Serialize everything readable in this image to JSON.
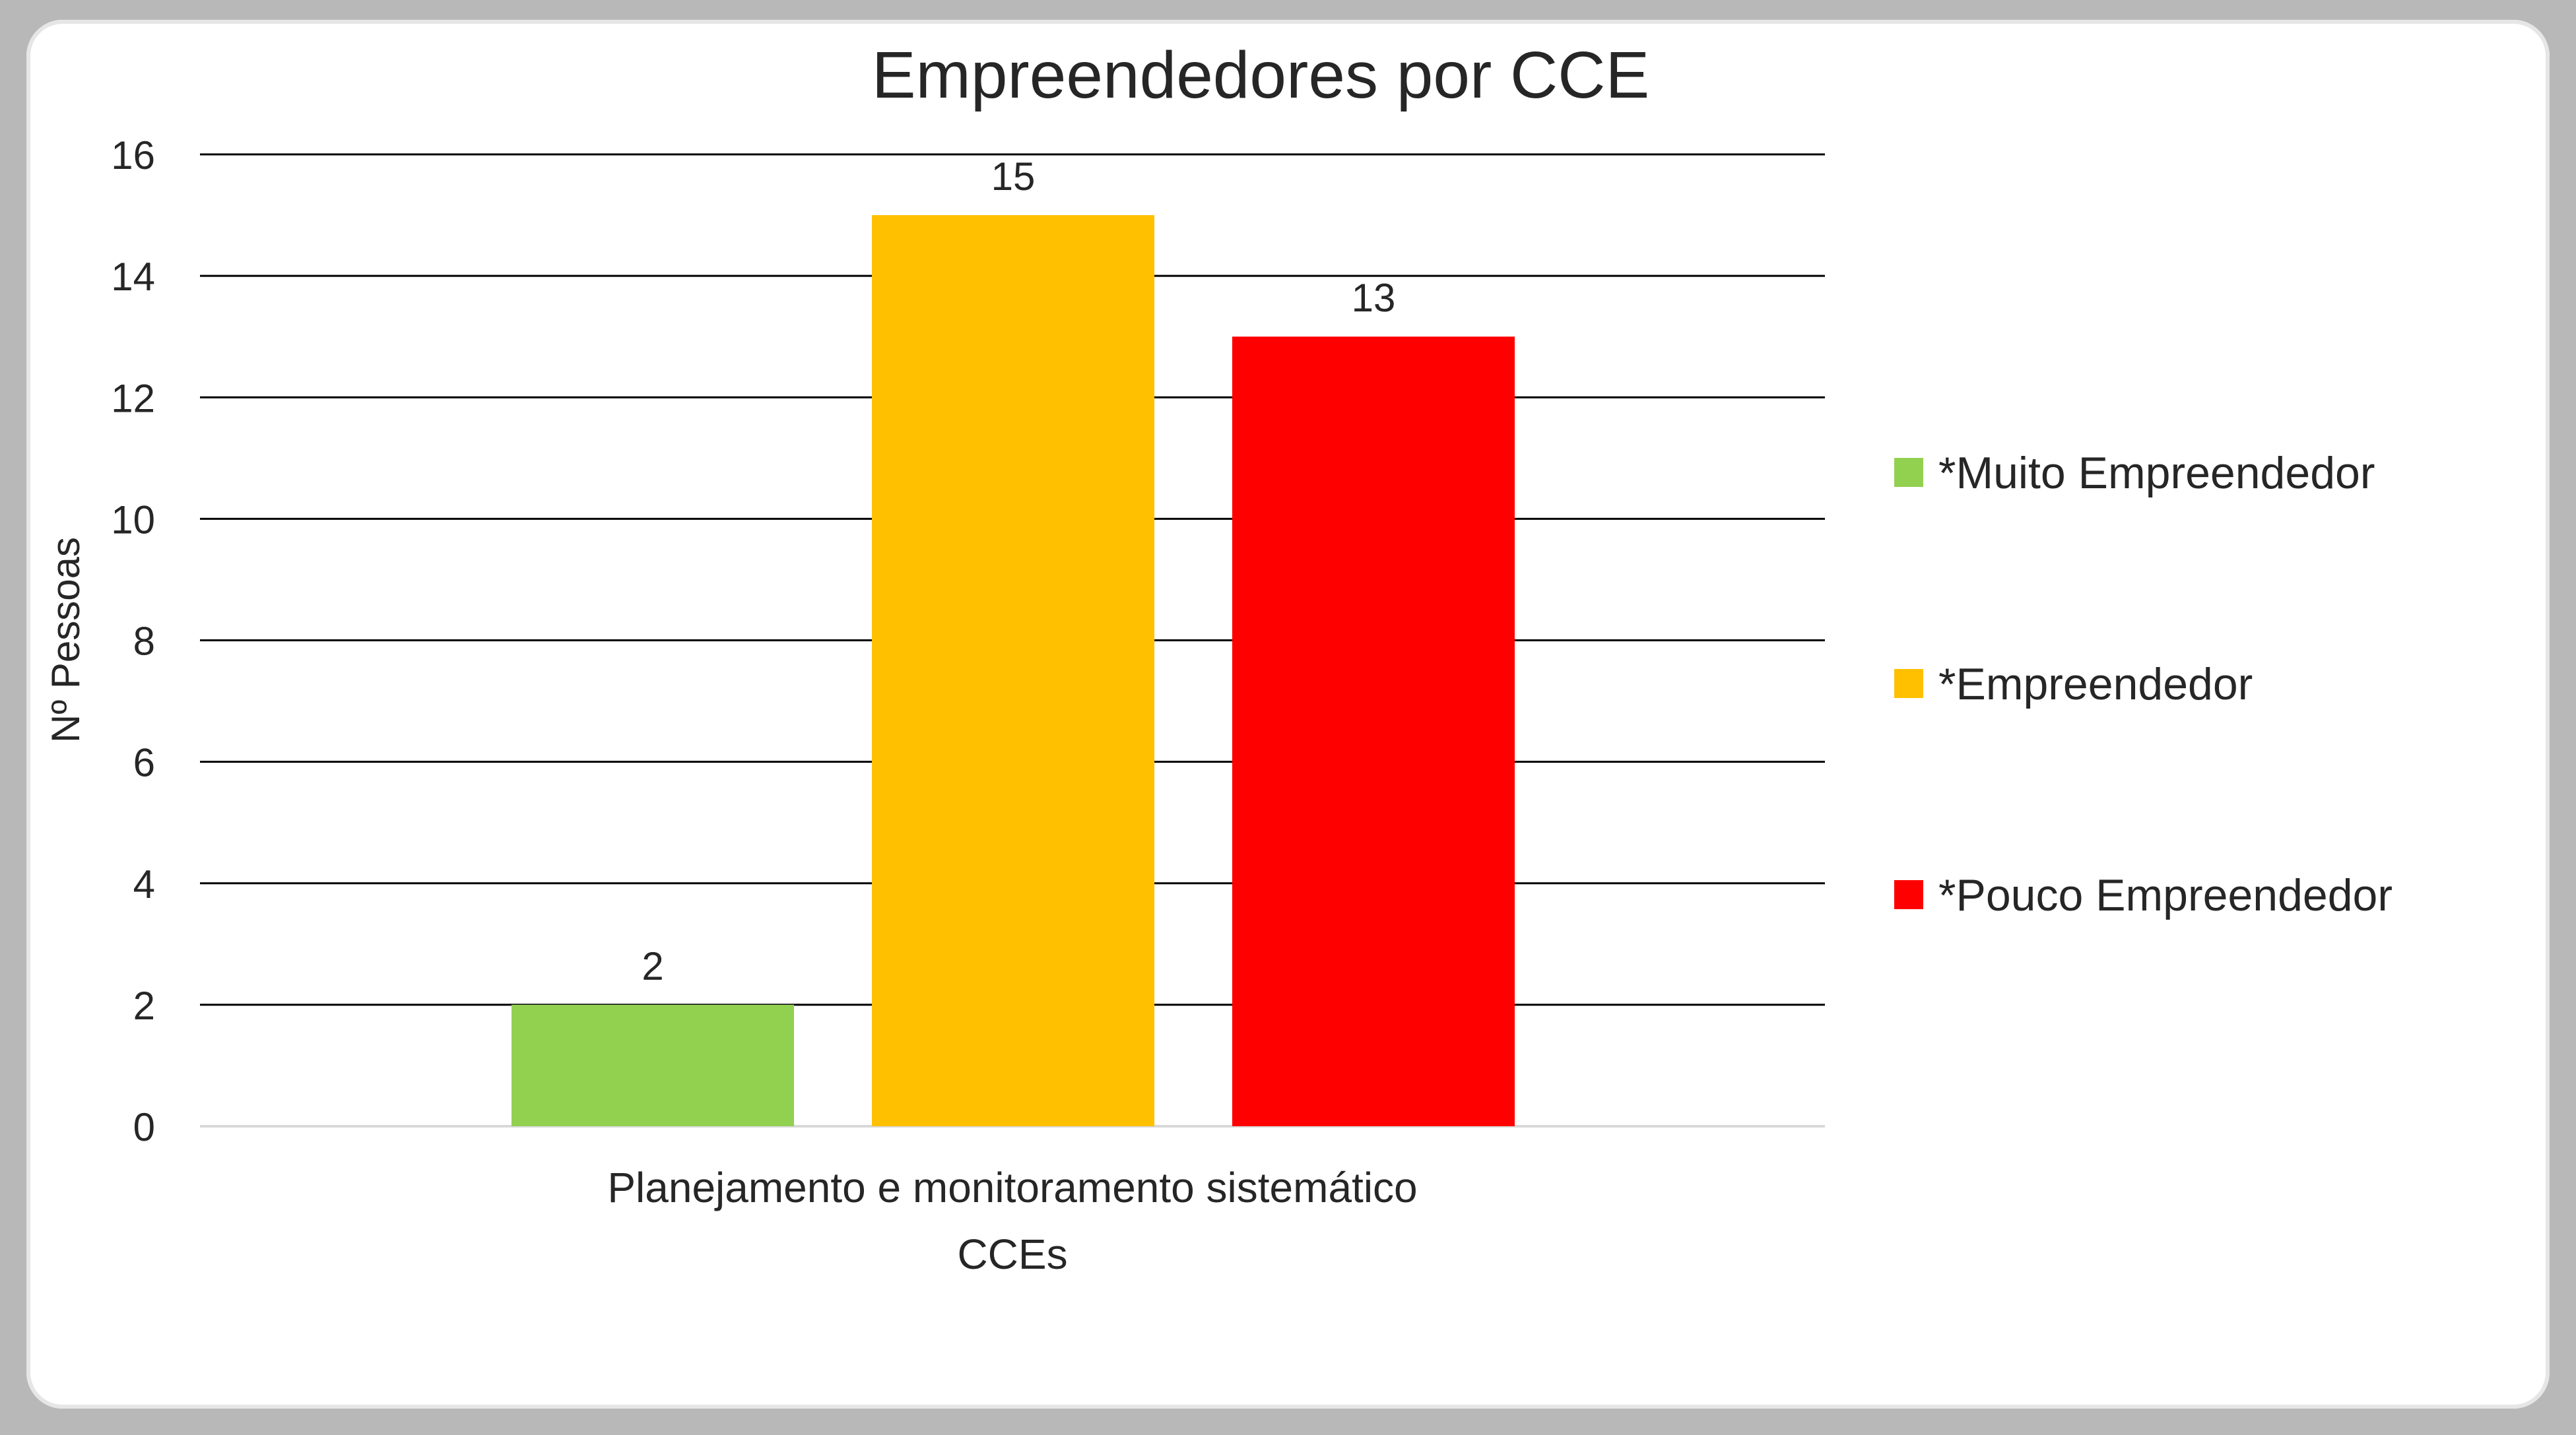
{
  "chart_data": {
    "type": "bar",
    "title": "Empreendedores por CCE",
    "xlabel": "CCEs",
    "ylabel": "Nº Pessoas",
    "categories": [
      "Planejamento e monitoramento sistemático"
    ],
    "ylim": [
      0,
      16
    ],
    "yticks": [
      "0",
      "2",
      "4",
      "6",
      "8",
      "10",
      "12",
      "14",
      "16"
    ],
    "grid": true,
    "legend_position": "right",
    "series": [
      {
        "name": "*Muito Empreendedor",
        "values": [
          2
        ],
        "label": "2",
        "color": "#92D050"
      },
      {
        "name": "*Empreendedor",
        "values": [
          15
        ],
        "label": "15",
        "color": "#FFC000"
      },
      {
        "name": "*Pouco Empreendedor",
        "values": [
          13
        ],
        "label": "13",
        "color": "#FF0000"
      }
    ]
  }
}
